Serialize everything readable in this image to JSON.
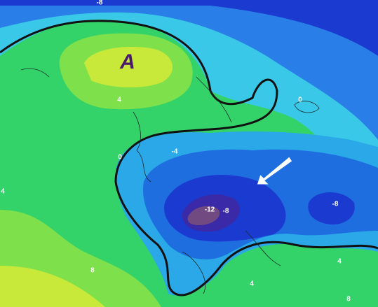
{
  "pressure_center": "A",
  "contour_labels": [
    "-8",
    "4",
    "0",
    "0",
    "-4",
    "-12",
    "-8",
    "-8",
    "4",
    "8",
    "4",
    "4",
    "8"
  ]
}
